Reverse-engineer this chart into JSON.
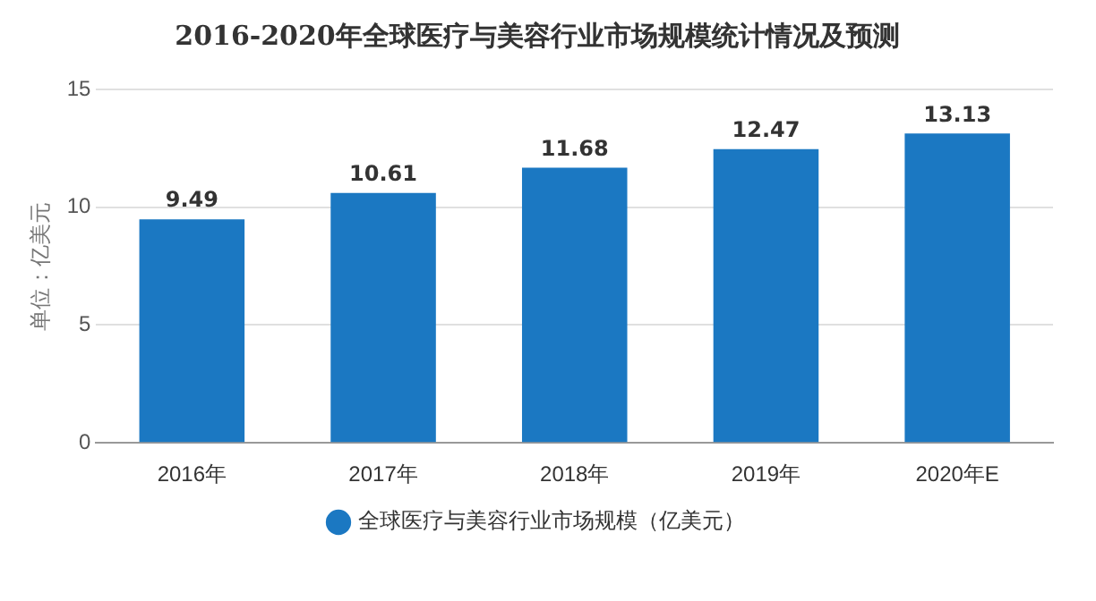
{
  "chart_data": {
    "type": "bar",
    "title": "2016-2020年全球医疗与美容行业市场规模统计情况及预测",
    "ylabel": "单位：亿美元",
    "categories": [
      "2016年",
      "2017年",
      "2018年",
      "2019年",
      "2020年E"
    ],
    "series": [
      {
        "name": "全球医疗与美容行业市场规模（亿美元）",
        "color": "#1b78c2",
        "values": [
          9.49,
          10.61,
          11.68,
          12.47,
          13.13
        ]
      }
    ],
    "ylim": [
      0,
      15
    ],
    "yticks": [
      0,
      5,
      10,
      15
    ],
    "grid": "y",
    "legend": "bottom",
    "data_labels": true
  }
}
